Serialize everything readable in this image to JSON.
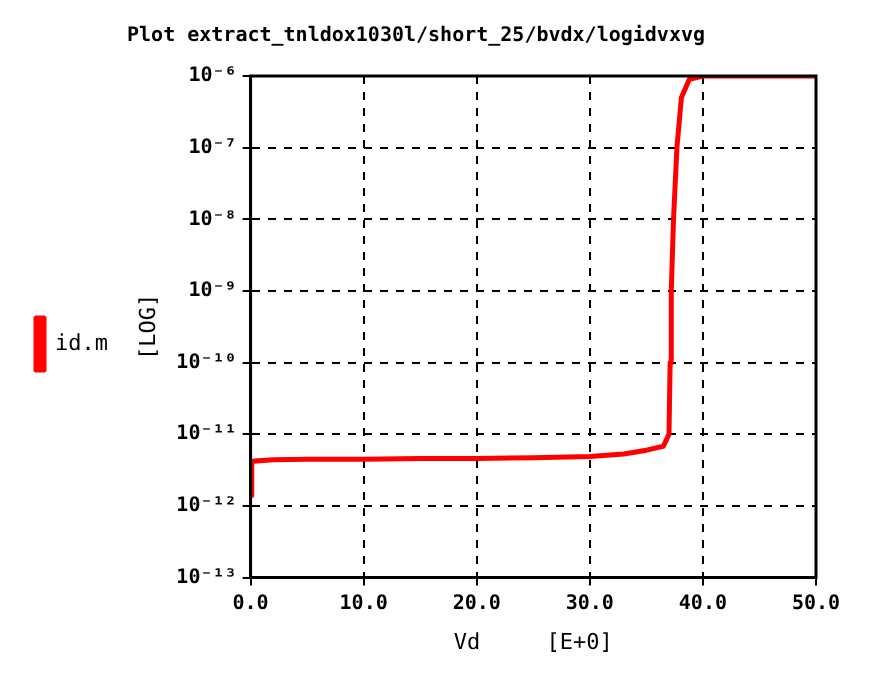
{
  "chart_data": {
    "type": "line",
    "title": "Plot extract_tnldox1030l/short_25/bvdx/logidvxvg",
    "xlabel": "Vd     [E+0]",
    "ylabel": "[LOG]",
    "series": [
      {
        "name": "id.m",
        "color": "#ff0000",
        "x": [
          0,
          0.1,
          2,
          5,
          10,
          15,
          20,
          25,
          30,
          33,
          35,
          36.5,
          37,
          37.1,
          37.2,
          37.4,
          37.7,
          38.1,
          38.8,
          40,
          50
        ],
        "values": [
          1.4e-12,
          4.2e-12,
          4.4e-12,
          4.5e-12,
          4.5e-12,
          4.6e-12,
          4.6e-12,
          4.7e-12,
          4.9e-12,
          5.3e-12,
          6e-12,
          6.8e-12,
          1e-11,
          1e-10,
          1e-09,
          1e-08,
          1e-07,
          5e-07,
          9e-07,
          1e-06,
          1e-06
        ]
      }
    ],
    "xlim": [
      0,
      50
    ],
    "xticks": [
      {
        "value": 0,
        "label": "0.0"
      },
      {
        "value": 10,
        "label": "10.0"
      },
      {
        "value": 20,
        "label": "20.0"
      },
      {
        "value": 30,
        "label": "30.0"
      },
      {
        "value": 40,
        "label": "40.0"
      },
      {
        "value": 50,
        "label": "50.0"
      }
    ],
    "ylim": [
      1e-13,
      1e-06
    ],
    "yticks": [
      {
        "value": 1e-13,
        "label": "10⁻¹³"
      },
      {
        "value": 1e-12,
        "label": "10⁻¹²"
      },
      {
        "value": 1e-11,
        "label": "10⁻¹¹"
      },
      {
        "value": 1e-10,
        "label": "10⁻¹⁰"
      },
      {
        "value": 1e-09,
        "label": "10⁻⁹"
      },
      {
        "value": 1e-08,
        "label": "10⁻⁸"
      },
      {
        "value": 1e-07,
        "label": "10⁻⁷"
      },
      {
        "value": 1e-06,
        "label": "10⁻⁶"
      }
    ],
    "log": "y",
    "grid": true,
    "legend": "left",
    "marker": "none",
    "line_style": "solid"
  }
}
